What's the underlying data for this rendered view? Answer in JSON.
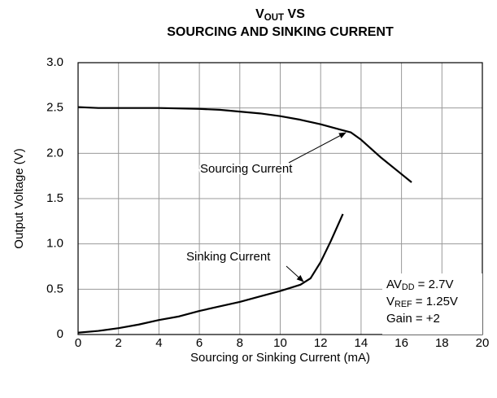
{
  "chart_data": {
    "type": "line",
    "title": [
      [
        {
          "text": "V"
        },
        {
          "text": "OUT",
          "sub": true
        },
        {
          "text": " VS"
        }
      ],
      [
        {
          "text": "SOURCING AND SINKING CURRENT"
        }
      ]
    ],
    "x_label": "Sourcing or Sinking Current (mA)",
    "y_label": "Output Voltage (V)",
    "xlim": [
      0,
      20
    ],
    "ylim": [
      0,
      3
    ],
    "xticks": [
      0,
      2,
      4,
      6,
      8,
      10,
      12,
      14,
      16,
      18,
      20
    ],
    "yticks": [
      0,
      0.5,
      {
        "value": 1,
        "label": "1.0"
      },
      1.5,
      {
        "value": 2,
        "label": "2.0"
      },
      2.5,
      {
        "value": 3,
        "label": "3.0"
      }
    ],
    "grid": true,
    "series": [
      {
        "name": "Sourcing Current",
        "color": "#000000",
        "x": [
          0,
          1,
          2,
          4,
          6,
          7,
          8,
          9,
          10,
          11,
          12,
          13,
          13.5,
          14,
          15,
          16,
          16.5
        ],
        "values": [
          2.51,
          2.5,
          2.5,
          2.5,
          2.49,
          2.48,
          2.46,
          2.44,
          2.41,
          2.37,
          2.32,
          2.26,
          2.23,
          2.15,
          1.95,
          1.77,
          1.68
        ]
      },
      {
        "name": "Sinking Current",
        "color": "#000000",
        "x": [
          0,
          1,
          2,
          3,
          4,
          5,
          6,
          7,
          8,
          9,
          10,
          11,
          11.5,
          12,
          12.5,
          13.1
        ],
        "values": [
          0.02,
          0.04,
          0.07,
          0.11,
          0.16,
          0.2,
          0.26,
          0.31,
          0.36,
          0.42,
          0.48,
          0.55,
          0.62,
          0.8,
          1.03,
          1.33
        ]
      }
    ],
    "conditions": [
      [
        {
          "text": "AV"
        },
        {
          "text": "DD",
          "sub": true
        },
        {
          "text": " = 2.7V"
        }
      ],
      [
        {
          "text": "V"
        },
        {
          "text": "REF",
          "sub": true
        },
        {
          "text": " = 1.25V"
        }
      ],
      [
        {
          "text": "Gain = +2"
        }
      ]
    ]
  }
}
